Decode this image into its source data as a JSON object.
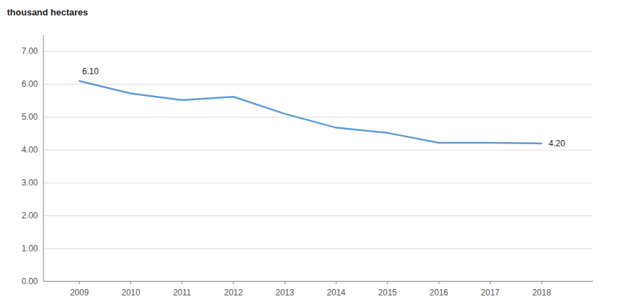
{
  "chart_data": {
    "type": "line",
    "ylabel": "thousand hectares",
    "x": [
      2009,
      2010,
      2011,
      2012,
      2013,
      2014,
      2015,
      2016,
      2017,
      2018
    ],
    "values": [
      6.1,
      5.72,
      5.52,
      5.62,
      5.1,
      4.68,
      4.52,
      4.22,
      4.22,
      4.2
    ],
    "color": "#5b9bd5",
    "xlim": [
      2008.3,
      2019.0
    ],
    "xticks": [
      2009,
      2010,
      2011,
      2012,
      2013,
      2014,
      2015,
      2016,
      2017,
      2018
    ],
    "ylim": [
      0.0,
      7.5
    ],
    "yticks": [
      {
        "value": 0.0,
        "label": "0.00"
      },
      {
        "value": 1.0,
        "label": "1.00"
      },
      {
        "value": 2.0,
        "label": "2.00"
      },
      {
        "value": 3.0,
        "label": "3.00"
      },
      {
        "value": 4.0,
        "label": "4.00"
      },
      {
        "value": 5.0,
        "label": "5.00"
      },
      {
        "value": 6.0,
        "label": "6.00"
      },
      {
        "value": 7.0,
        "label": "7.00"
      }
    ],
    "grid": true,
    "annotations": [
      {
        "text": "6.10",
        "x": 2009,
        "y": 6.1
      },
      {
        "text": "4.20",
        "x": 2018,
        "y": 4.2
      }
    ]
  }
}
